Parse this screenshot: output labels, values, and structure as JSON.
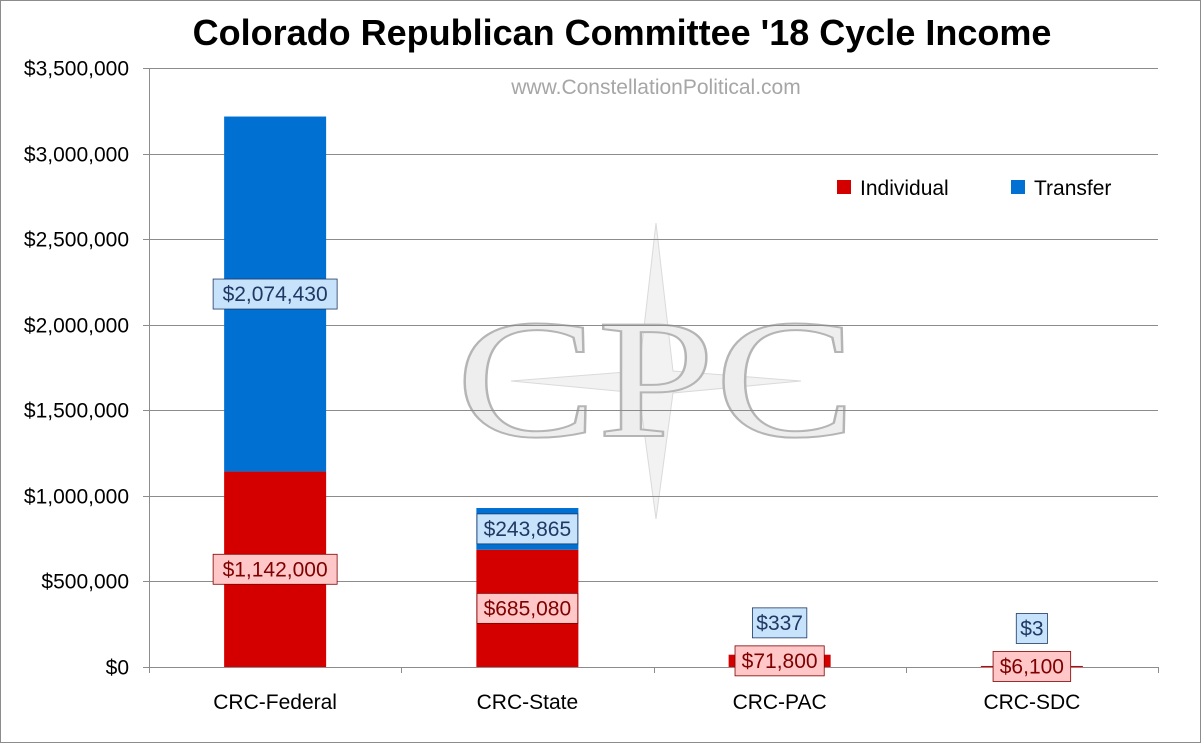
{
  "chart_data": {
    "type": "bar",
    "stacked": true,
    "title": "Colorado Republican Committee '18 Cycle Income",
    "subtitle": "www.ConstellationPolitical.com",
    "watermark": "CPC",
    "categories": [
      "CRC-Federal",
      "CRC-State",
      "CRC-PAC",
      "CRC-SDC"
    ],
    "series": [
      {
        "name": "Individual",
        "color": "#d40000",
        "label_bg": "#ffc7c7",
        "label_fg": "#7f0000",
        "values": [
          1142000,
          685080,
          71800,
          6100
        ],
        "labels": [
          "$1,142,000",
          "$685,080",
          "$71,800",
          "$6,100"
        ]
      },
      {
        "name": "Transfer",
        "color": "#0070d2",
        "label_bg": "#c6e3fb",
        "label_fg": "#1f3864",
        "values": [
          2074430,
          243865,
          337,
          3
        ],
        "labels": [
          "$2,074,430",
          "$243,865",
          "$337",
          "$3"
        ]
      }
    ],
    "ylim": [
      0,
      3500000
    ],
    "yticks": [
      0,
      500000,
      1000000,
      1500000,
      2000000,
      2500000,
      3000000,
      3500000
    ],
    "ytick_labels": [
      "$0",
      "$500,000",
      "$1,000,000",
      "$1,500,000",
      "$2,000,000",
      "$2,500,000",
      "$3,000,000",
      "$3,500,000"
    ],
    "xlabel": "",
    "ylabel": "",
    "grid": true,
    "legend_position": "top-right"
  }
}
